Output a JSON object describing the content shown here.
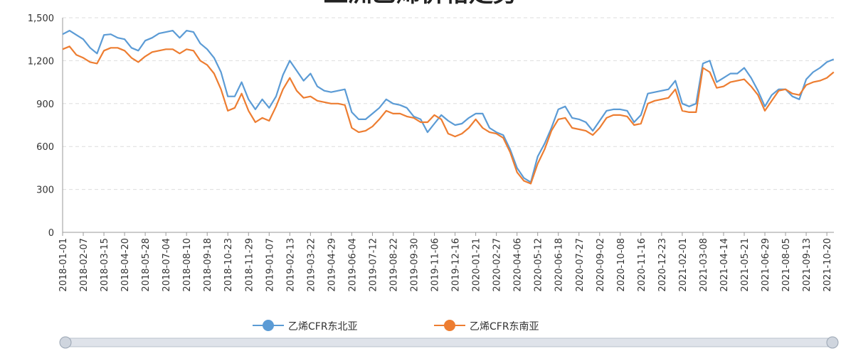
{
  "chart_data": {
    "type": "line",
    "title": "亚洲乙烯价格走势",
    "categories": [
      "2018-01-01",
      null,
      null,
      "2018-02-07",
      null,
      null,
      "2018-03-15",
      null,
      null,
      "2018-04-20",
      null,
      null,
      "2018-05-28",
      null,
      null,
      "2018-07-04",
      null,
      null,
      "2018-08-10",
      null,
      null,
      "2018-09-18",
      null,
      null,
      "2018-10-23",
      null,
      null,
      "2018-11-29",
      null,
      null,
      "2019-01-07",
      null,
      null,
      "2019-02-13",
      null,
      null,
      "2019-03-22",
      null,
      null,
      "2019-04-29",
      null,
      null,
      "2019-06-04",
      null,
      null,
      "2019-07-12",
      null,
      null,
      "2019-08-22",
      null,
      null,
      "2019-09-30",
      null,
      null,
      "2019-11-06",
      null,
      null,
      "2019-12-16",
      null,
      null,
      "2020-01-21",
      null,
      null,
      "2020-02-27",
      null,
      null,
      "2020-04-06",
      null,
      null,
      "2020-05-12",
      null,
      null,
      "2020-06-18",
      null,
      null,
      "2020-07-27",
      null,
      null,
      "2020-09-02",
      null,
      null,
      "2020-10-08",
      null,
      null,
      "2020-11-16",
      null,
      null,
      "2020-12-23",
      null,
      null,
      "2021-02-01",
      null,
      null,
      "2021-03-08",
      null,
      null,
      "2021-04-14",
      null,
      null,
      "2021-05-21",
      null,
      null,
      "2021-06-29",
      null,
      null,
      "2021-08-05",
      null,
      null,
      "2021-09-13",
      null,
      null,
      "2021-10-20",
      null
    ],
    "series": [
      {
        "name": "乙烯CFR东北亚",
        "color": "#5b9bd5",
        "values": [
          1385,
          1410,
          1380,
          1350,
          1290,
          1250,
          1380,
          1385,
          1360,
          1350,
          1290,
          1270,
          1340,
          1360,
          1390,
          1400,
          1410,
          1360,
          1410,
          1400,
          1320,
          1280,
          1220,
          1120,
          950,
          950,
          1050,
          930,
          860,
          930,
          870,
          950,
          1100,
          1200,
          1130,
          1060,
          1110,
          1020,
          990,
          980,
          990,
          1000,
          840,
          790,
          790,
          830,
          870,
          930,
          900,
          890,
          870,
          810,
          790,
          700,
          760,
          820,
          780,
          750,
          760,
          800,
          830,
          830,
          730,
          700,
          680,
          580,
          450,
          380,
          350,
          530,
          620,
          730,
          860,
          880,
          800,
          790,
          770,
          710,
          780,
          850,
          860,
          860,
          850,
          770,
          820,
          970,
          980,
          990,
          1000,
          1060,
          900,
          880,
          900,
          1180,
          1200,
          1050,
          1080,
          1110,
          1110,
          1150,
          1080,
          990,
          880,
          960,
          1000,
          1000,
          950,
          930,
          1070,
          1120,
          1150,
          1190,
          1210
        ]
      },
      {
        "name": "乙烯CFR东南亚",
        "color": "#ed7d31",
        "values": [
          1280,
          1300,
          1240,
          1220,
          1190,
          1180,
          1270,
          1290,
          1290,
          1270,
          1220,
          1190,
          1230,
          1260,
          1270,
          1280,
          1280,
          1250,
          1280,
          1270,
          1200,
          1170,
          1110,
          1000,
          850,
          870,
          970,
          850,
          770,
          800,
          780,
          880,
          1000,
          1080,
          990,
          940,
          950,
          920,
          910,
          900,
          900,
          890,
          730,
          700,
          710,
          740,
          790,
          850,
          830,
          830,
          810,
          800,
          770,
          770,
          820,
          790,
          690,
          670,
          690,
          730,
          790,
          730,
          700,
          690,
          660,
          560,
          420,
          360,
          340,
          480,
          580,
          710,
          790,
          800,
          730,
          720,
          710,
          680,
          730,
          800,
          820,
          820,
          810,
          750,
          760,
          900,
          920,
          930,
          940,
          1000,
          850,
          840,
          840,
          1150,
          1120,
          1010,
          1020,
          1050,
          1060,
          1070,
          1020,
          960,
          850,
          920,
          990,
          1000,
          970,
          960,
          1030,
          1050,
          1060,
          1080,
          1120
        ]
      }
    ],
    "ylim": [
      0,
      1500
    ],
    "yticks": [
      0,
      300,
      600,
      900,
      {
        "value": 1200,
        "label": "1,200"
      },
      {
        "value": 1500,
        "label": "1,500"
      }
    ],
    "grid": true
  }
}
